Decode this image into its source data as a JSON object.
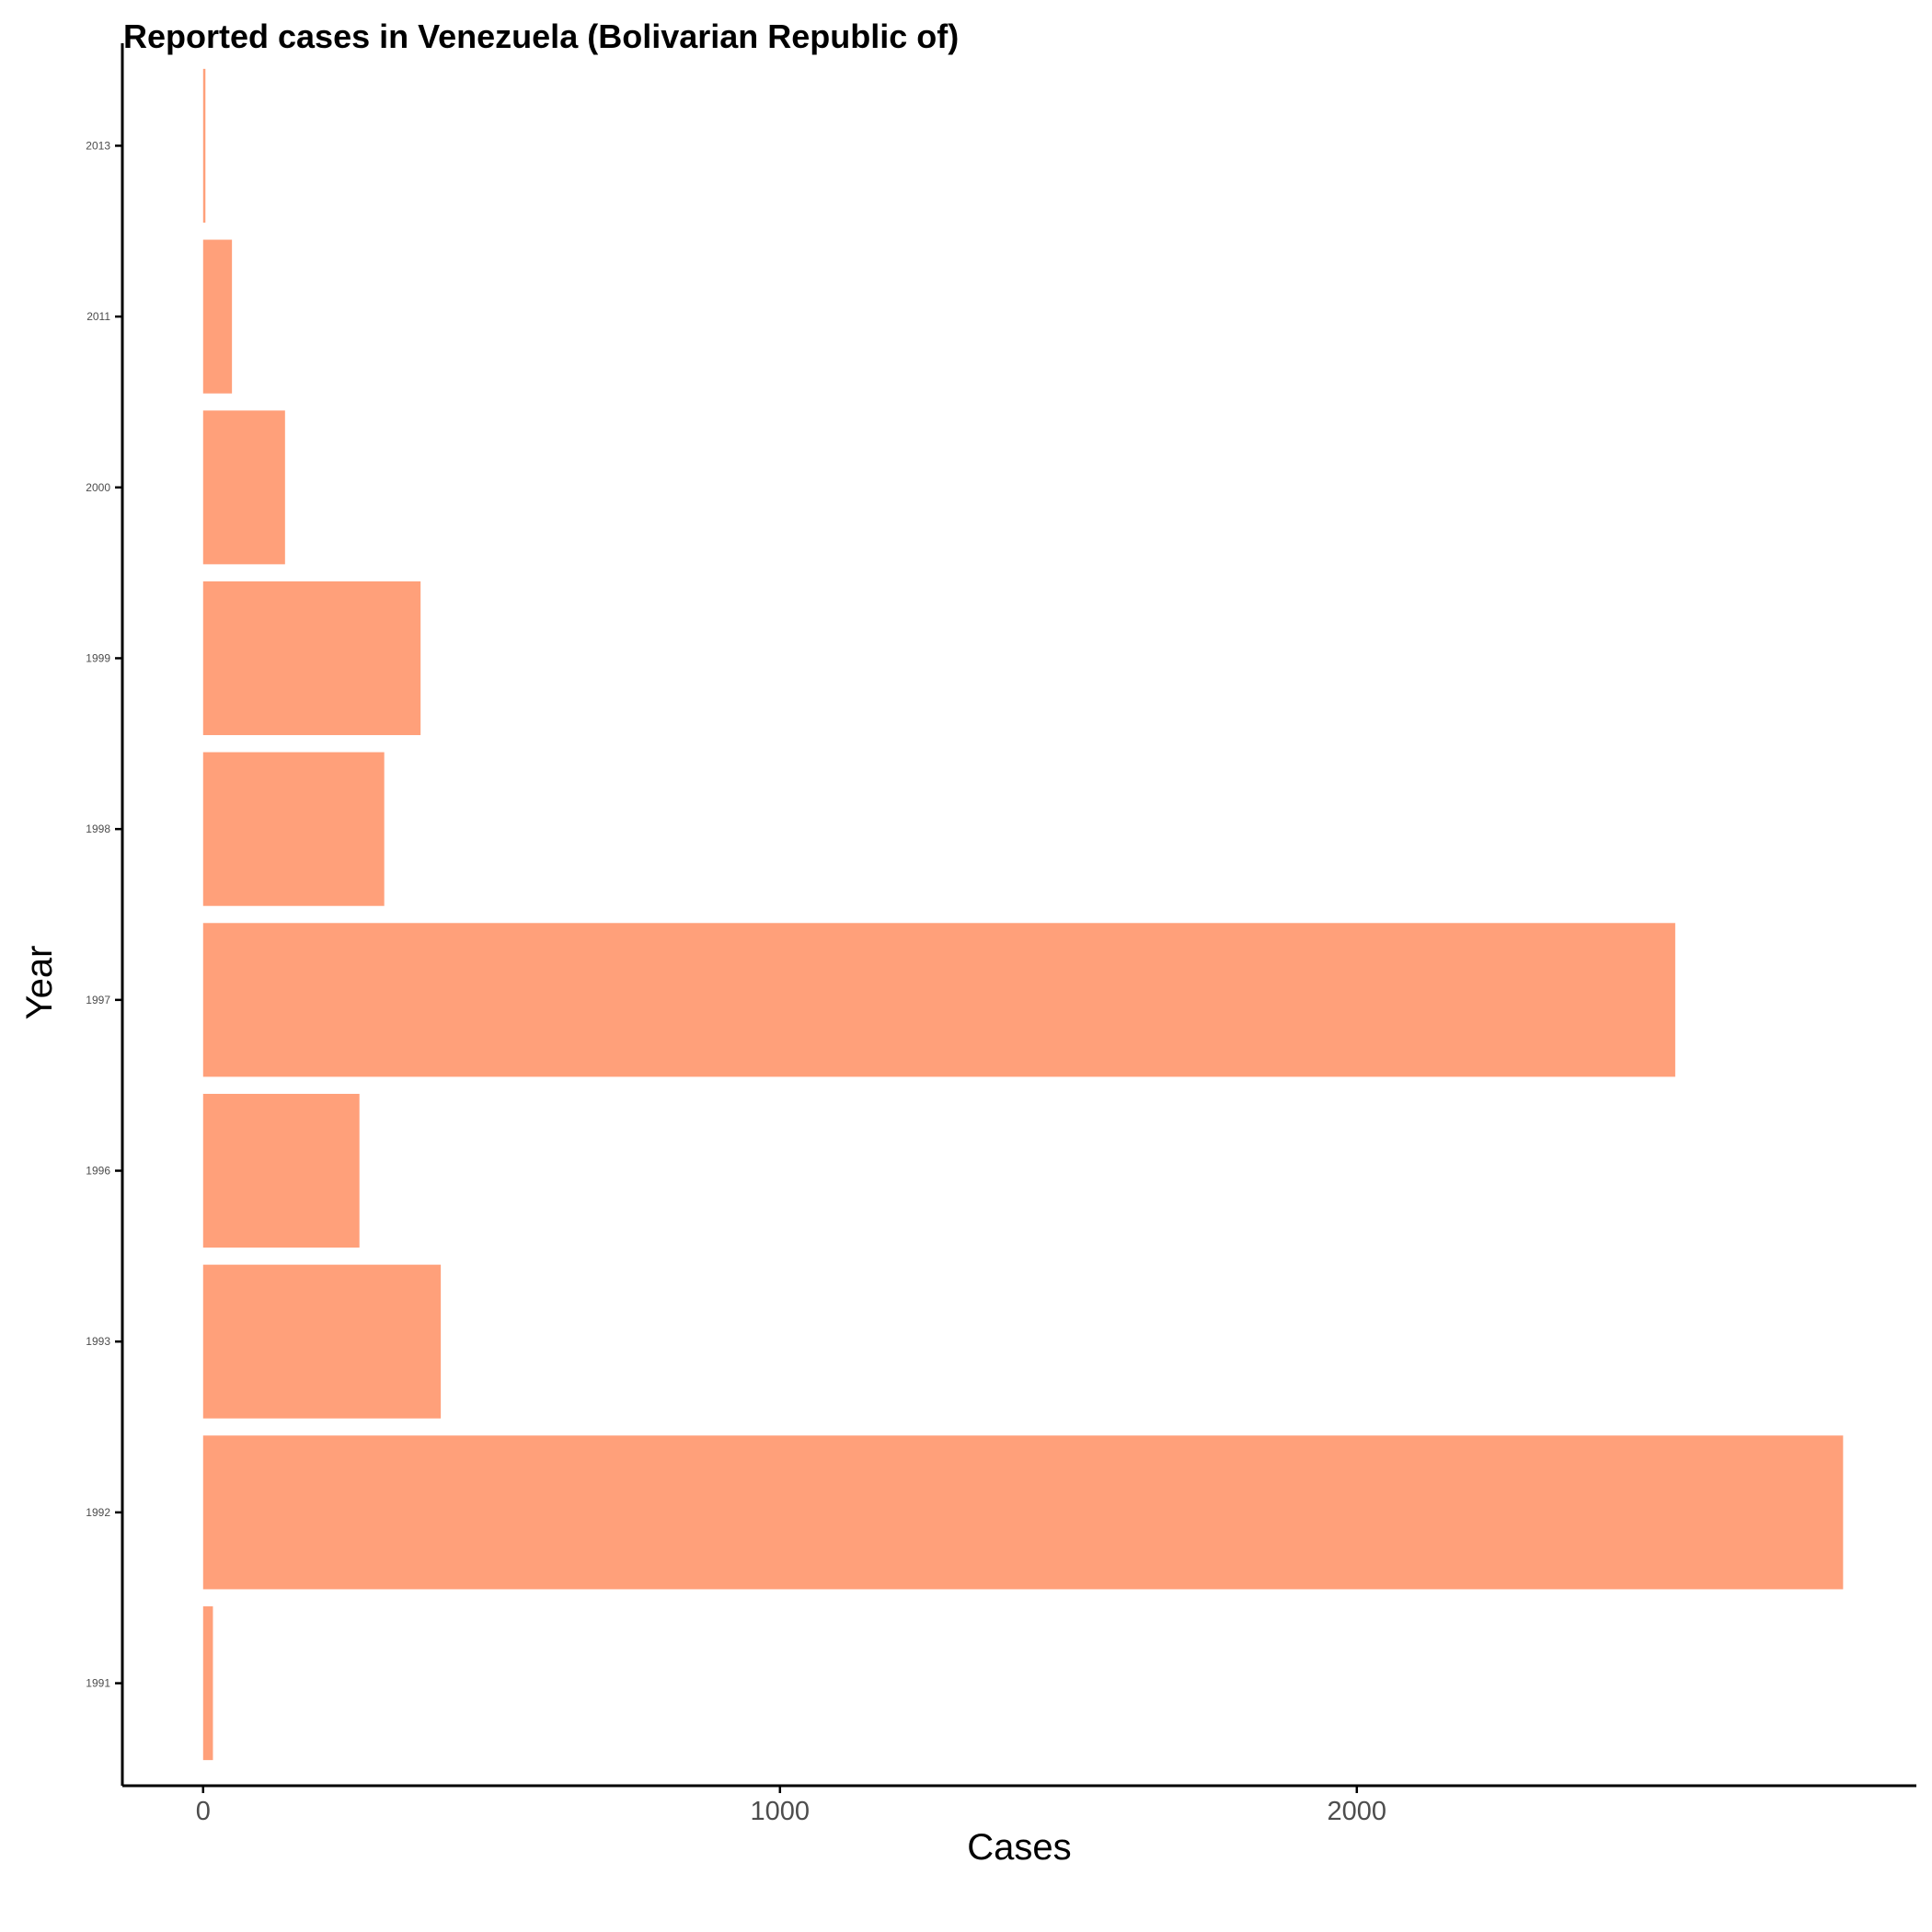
{
  "chart_data": {
    "type": "bar",
    "orientation": "horizontal",
    "title": "Reported cases in Venezuela (Bolivarian Republic of)",
    "xlabel": "Cases",
    "ylabel": "Year",
    "categories": [
      "1991",
      "1992",
      "1993",
      "1996",
      "1997",
      "1998",
      "1999",
      "2000",
      "2011",
      "2013"
    ],
    "values": [
      17,
      2843,
      412,
      271,
      2552,
      314,
      377,
      142,
      50,
      4
    ],
    "x_ticks": [
      "0",
      "1000",
      "2000"
    ],
    "xlim": [
      -140,
      2970
    ],
    "grid": false,
    "legend": "none",
    "bar_color": "#FFA07A"
  }
}
